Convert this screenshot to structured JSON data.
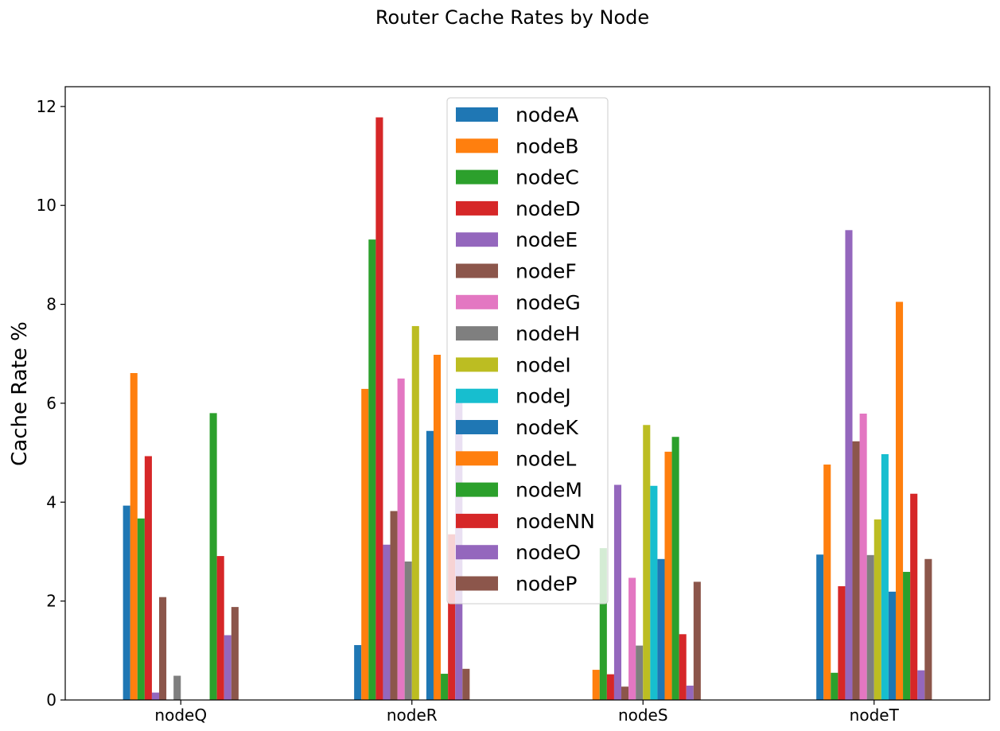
{
  "chart_data": {
    "type": "bar",
    "title": "Router Cache Rates by Node",
    "xlabel": "",
    "ylabel": "Cache Rate %",
    "ylim": [
      0,
      12.4
    ],
    "yticks": [
      0,
      2,
      4,
      6,
      8,
      10,
      12
    ],
    "grid": false,
    "legend_position": "top-center",
    "categories": [
      "nodeQ",
      "nodeR",
      "nodeS",
      "nodeT"
    ],
    "series": [
      {
        "name": "nodeA",
        "color": "#1f77b4",
        "values": [
          3.93,
          1.11,
          0.0,
          2.94
        ]
      },
      {
        "name": "nodeB",
        "color": "#ff7f0e",
        "values": [
          6.61,
          6.29,
          0.61,
          4.76
        ]
      },
      {
        "name": "nodeC",
        "color": "#2ca02c",
        "values": [
          3.67,
          9.31,
          3.07,
          0.55
        ]
      },
      {
        "name": "nodeD",
        "color": "#d62728",
        "values": [
          4.93,
          11.78,
          0.52,
          2.3
        ]
      },
      {
        "name": "nodeE",
        "color": "#9467bd",
        "values": [
          0.15,
          3.14,
          4.35,
          9.5
        ]
      },
      {
        "name": "nodeF",
        "color": "#8c564b",
        "values": [
          2.08,
          3.82,
          0.27,
          5.23
        ]
      },
      {
        "name": "nodeG",
        "color": "#e377c2",
        "values": [
          0.0,
          6.5,
          2.47,
          5.79
        ]
      },
      {
        "name": "nodeH",
        "color": "#7f7f7f",
        "values": [
          0.49,
          2.8,
          1.1,
          2.93
        ]
      },
      {
        "name": "nodeI",
        "color": "#bcbd22",
        "values": [
          0.0,
          7.56,
          5.56,
          3.65
        ]
      },
      {
        "name": "nodeJ",
        "color": "#17becf",
        "values": [
          0.0,
          0.0,
          4.33,
          4.97
        ]
      },
      {
        "name": "nodeK",
        "color": "#1f77b4",
        "values": [
          0.0,
          5.44,
          2.85,
          2.19
        ]
      },
      {
        "name": "nodeL",
        "color": "#ff7f0e",
        "values": [
          0.0,
          6.98,
          5.02,
          8.05
        ]
      },
      {
        "name": "nodeM",
        "color": "#2ca02c",
        "values": [
          5.8,
          0.53,
          5.32,
          2.59
        ]
      },
      {
        "name": "nodeNN",
        "color": "#d62728",
        "values": [
          2.91,
          3.35,
          1.33,
          4.17
        ]
      },
      {
        "name": "nodeO",
        "color": "#9467bd",
        "values": [
          1.31,
          6.05,
          0.29,
          0.6
        ]
      },
      {
        "name": "nodeP",
        "color": "#8c564b",
        "values": [
          1.88,
          0.63,
          2.39,
          2.85
        ]
      }
    ]
  }
}
